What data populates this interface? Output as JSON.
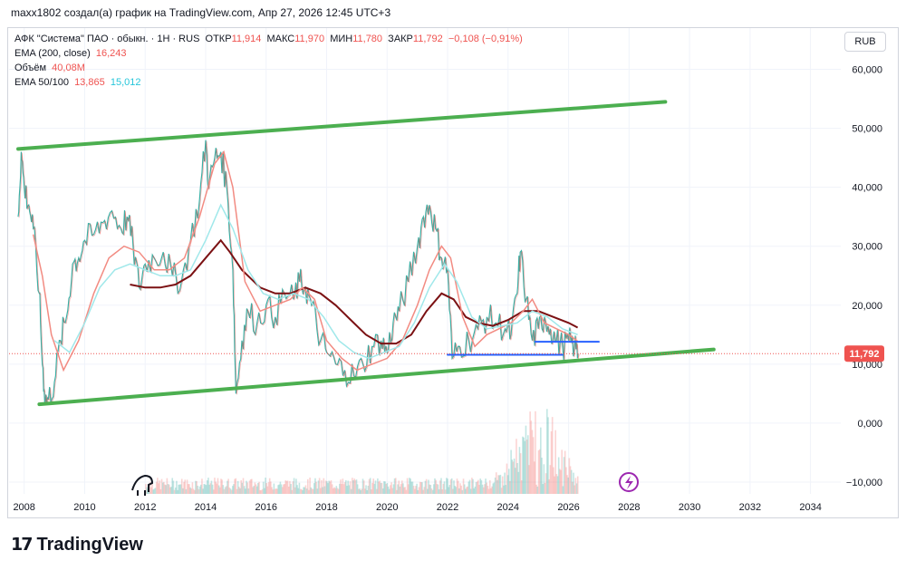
{
  "header": "maxx1802 создал(а) график на TradingView.com, Апр 27, 2026 12:45 UTC+3",
  "legend": {
    "symbol": "АФК \"Система\" ПАО · обыкн. · 1Н · RUS",
    "open_label": "ОТКР",
    "open": "11,914",
    "high_label": "МАКС",
    "high": "11,970",
    "low_label": "МИН",
    "low": "11,780",
    "close_label": "ЗАКР",
    "close": "11,792",
    "change": "−0,108 (−0,91%)",
    "ema200_label": "EMA (200, close)",
    "ema200": "16,243",
    "volume_label": "Объём",
    "volume": "40,08M",
    "ema50100_label": "EMA 50/100",
    "ema50": "13,865",
    "ema100": "15,012"
  },
  "currency": "RUB",
  "price_badge": "11,792",
  "brand": "TradingView",
  "colors": {
    "up": "#26a69a",
    "down": "#ef5350",
    "ema200": "#7b1113",
    "ema50": "#f28b82",
    "ema100": "#a0e8ea",
    "channel": "#4caf50",
    "level": "#2962ff",
    "price_line": "#ef5350"
  },
  "chart_data": {
    "type": "line",
    "x_unit": "year",
    "xlim": [
      2007.5,
      2035
    ],
    "ylim": [
      -12,
      67
    ],
    "x_ticks": [
      2008,
      2010,
      2012,
      2014,
      2016,
      2018,
      2020,
      2022,
      2024,
      2026,
      2028,
      2030,
      2032,
      2034
    ],
    "y_ticks": [
      {
        "v": 60,
        "label": "60,000"
      },
      {
        "v": 50,
        "label": "50,000"
      },
      {
        "v": 40,
        "label": "40,000"
      },
      {
        "v": 30,
        "label": "30,000"
      },
      {
        "v": 20,
        "label": "20,000"
      },
      {
        "v": 10,
        "label": "10,000"
      },
      {
        "v": 0,
        "label": "0,000"
      },
      {
        "v": -10,
        "label": "−10,000"
      }
    ],
    "grid": true,
    "series": [
      {
        "name": "Цена",
        "role": "price",
        "x": [
          2007.8,
          2007.9,
          2008.0,
          2008.15,
          2008.3,
          2008.5,
          2008.6,
          2008.7,
          2008.8,
          2009.0,
          2009.2,
          2009.4,
          2009.6,
          2009.8,
          2010.0,
          2010.3,
          2010.6,
          2010.9,
          2011.2,
          2011.4,
          2011.6,
          2011.8,
          2012.0,
          2012.3,
          2012.6,
          2012.9,
          2013.2,
          2013.5,
          2013.8,
          2014.0,
          2014.1,
          2014.3,
          2014.5,
          2014.7,
          2014.9,
          2015.0,
          2015.2,
          2015.4,
          2015.7,
          2016.0,
          2016.3,
          2016.6,
          2016.9,
          2017.1,
          2017.3,
          2017.5,
          2017.8,
          2018.0,
          2018.3,
          2018.6,
          2018.9,
          2019.2,
          2019.5,
          2019.8,
          2020.0,
          2020.2,
          2020.4,
          2020.7,
          2021.0,
          2021.2,
          2021.4,
          2021.6,
          2021.8,
          2022.0,
          2022.15,
          2022.4,
          2022.7,
          2023.0,
          2023.3,
          2023.6,
          2023.9,
          2024.1,
          2024.3,
          2024.4,
          2024.6,
          2024.8,
          2025.0,
          2025.2,
          2025.4,
          2025.6,
          2025.8,
          2026.0,
          2026.2,
          2026.32
        ],
        "y": [
          35,
          46,
          40,
          37,
          33,
          22,
          10,
          4,
          4,
          7,
          14,
          18,
          27,
          28,
          31,
          32,
          34,
          36,
          33,
          35,
          30,
          23,
          27,
          28,
          29,
          25,
          24,
          31,
          38,
          48,
          40,
          45,
          46,
          40,
          26,
          5,
          14,
          19,
          17,
          20,
          18,
          22,
          21,
          24,
          23,
          20,
          14,
          12,
          10,
          9,
          8,
          10,
          13,
          14,
          12,
          17,
          19,
          24,
          30,
          35,
          37,
          33,
          28,
          26,
          11,
          13,
          14,
          16,
          18,
          17,
          16,
          15,
          22,
          29,
          21,
          14,
          16,
          18,
          16,
          14,
          13,
          14,
          13,
          11.8
        ]
      },
      {
        "name": "EMA 200",
        "role": "ema200",
        "x": [
          2011.5,
          2012.0,
          2012.5,
          2013.0,
          2013.5,
          2014.0,
          2014.5,
          2014.8,
          2015.2,
          2015.8,
          2016.3,
          2016.8,
          2017.3,
          2017.8,
          2018.3,
          2018.8,
          2019.3,
          2019.8,
          2020.3,
          2020.8,
          2021.3,
          2021.8,
          2022.2,
          2022.6,
          2023.0,
          2023.5,
          2024.0,
          2024.5,
          2025.0,
          2025.5,
          2026.0,
          2026.3
        ],
        "y": [
          23.5,
          23,
          23,
          23.5,
          25,
          28,
          31,
          29,
          26,
          23,
          22,
          22,
          23,
          22,
          20,
          17.5,
          15,
          13.5,
          13.5,
          15,
          19,
          22,
          21,
          18,
          17,
          16.5,
          17.5,
          19,
          19,
          18,
          17,
          16.2
        ]
      },
      {
        "name": "EMA 50",
        "role": "ema50",
        "x": [
          2008.3,
          2008.6,
          2008.9,
          2009.3,
          2009.8,
          2010.3,
          2010.8,
          2011.3,
          2011.8,
          2012.3,
          2012.8,
          2013.3,
          2013.8,
          2014.3,
          2014.6,
          2014.9,
          2015.3,
          2015.8,
          2016.3,
          2016.8,
          2017.2,
          2017.6,
          2018.0,
          2018.5,
          2019.0,
          2019.5,
          2020.0,
          2020.5,
          2021.0,
          2021.4,
          2021.8,
          2022.1,
          2022.5,
          2022.9,
          2023.3,
          2023.7,
          2024.1,
          2024.5,
          2024.8,
          2025.2,
          2025.6,
          2026.0,
          2026.3
        ],
        "y": [
          32,
          25,
          15,
          9,
          14,
          22,
          28,
          30,
          29,
          26,
          26,
          28,
          35,
          44,
          46,
          40,
          24,
          19,
          20,
          21,
          23,
          21,
          14,
          11,
          9,
          10,
          11,
          14,
          20,
          26,
          30,
          28,
          18,
          13,
          15,
          16,
          17,
          19,
          21,
          17,
          16,
          15,
          13.9
        ]
      },
      {
        "name": "EMA 100",
        "role": "ema100",
        "x": [
          2009.0,
          2009.5,
          2010.0,
          2010.5,
          2011.0,
          2011.5,
          2012.0,
          2012.5,
          2013.0,
          2013.5,
          2014.0,
          2014.5,
          2014.9,
          2015.4,
          2015.9,
          2016.4,
          2016.9,
          2017.4,
          2017.9,
          2018.4,
          2018.9,
          2019.4,
          2019.9,
          2020.4,
          2020.9,
          2021.4,
          2021.9,
          2022.3,
          2022.8,
          2023.3,
          2023.8,
          2024.3,
          2024.8,
          2025.3,
          2025.8,
          2026.3
        ],
        "y": [
          14,
          12,
          17,
          23,
          26,
          27,
          26,
          25,
          25,
          26,
          31,
          37,
          33,
          26,
          22,
          21,
          22,
          21,
          18,
          14,
          12,
          11,
          12,
          13,
          17,
          23,
          27,
          24,
          18,
          16,
          16.5,
          17,
          19,
          18,
          16,
          15
        ]
      }
    ],
    "volume": {
      "name": "Объём",
      "x_start": 2012.0,
      "x_end": 2026.3,
      "peak_x": 2025.0
    },
    "annotations": {
      "channel_top": {
        "x": [
          2007.8,
          2029.2
        ],
        "y": [
          46.5,
          54.5
        ]
      },
      "channel_bottom": {
        "x": [
          2008.5,
          2030.8
        ],
        "y": [
          3.2,
          12.5
        ]
      },
      "level_lower": {
        "x": [
          2022.0,
          2025.8
        ],
        "y": [
          11.6,
          11.6
        ]
      },
      "level_upper": {
        "x": [
          2024.9,
          2027.0
        ],
        "y": [
          13.8,
          13.8
        ]
      },
      "current_price": 11.792
    }
  }
}
